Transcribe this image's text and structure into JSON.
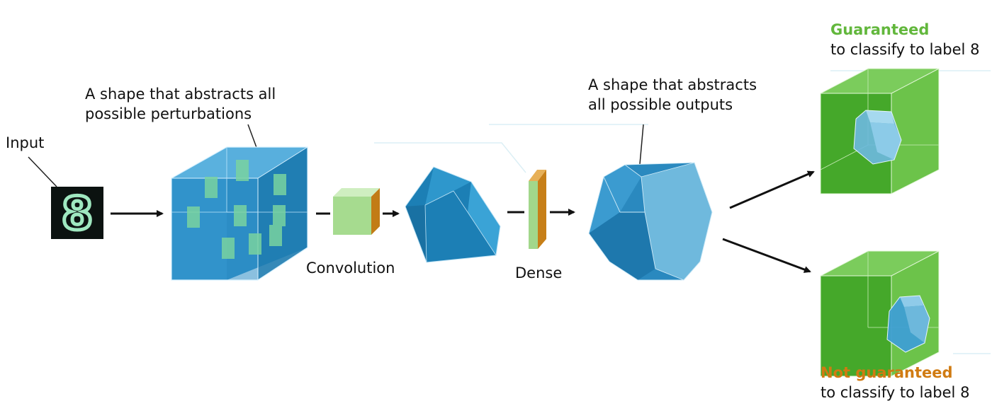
{
  "labels": {
    "input": "Input",
    "perturbations_line1": "A shape that abstracts all",
    "perturbations_line2": "possible perturbations",
    "convolution": "Convolution",
    "dense": "Dense",
    "outputs_line1": "A shape that abstracts",
    "outputs_line2": "all possible outputs",
    "guaranteed_title": "Guaranteed",
    "guaranteed_sub": "to classify to label 8",
    "not_guaranteed_title": "Not guaranteed",
    "not_guaranteed_sub": "to classify to label 8"
  },
  "digit_glyph": "8",
  "colors": {
    "guaranteed": "#62b73c",
    "not_guaranteed": "#d07b12",
    "blue_light": "#5fb2dc",
    "blue_mid": "#2b8cc2",
    "blue_dark": "#1a6f9f",
    "green_box": "#5fc03a",
    "arrow": "#111111"
  }
}
